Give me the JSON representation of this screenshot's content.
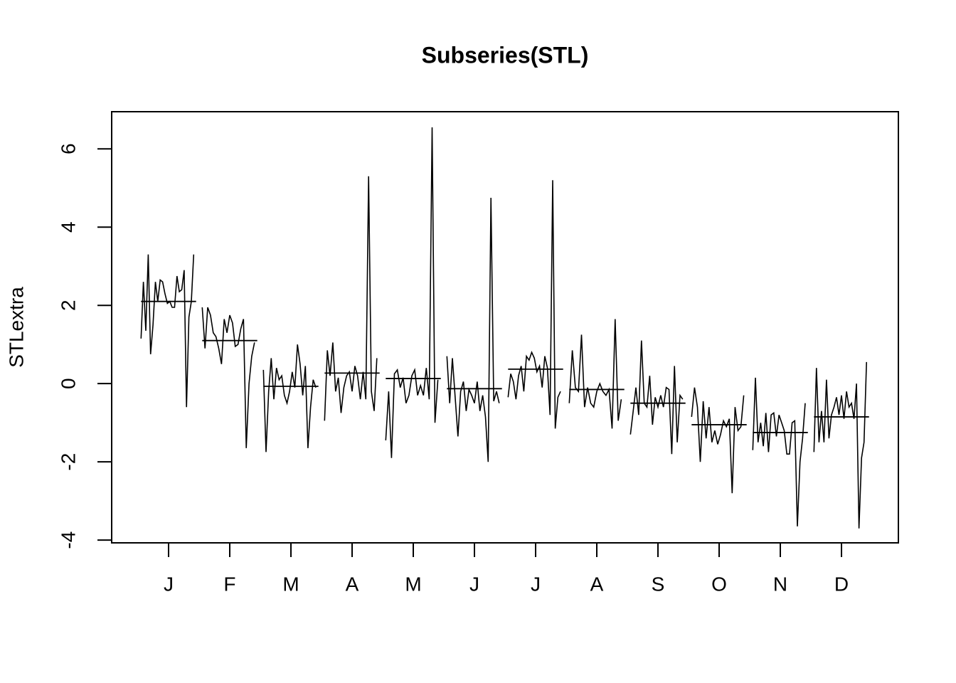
{
  "chart_data": {
    "type": "subseries",
    "title": "Subseries(STL)",
    "y_label": "STLextra",
    "xlim": [
      0.07,
      12.93
    ],
    "ylim": [
      -4.07,
      6.95
    ],
    "xticks": [
      {
        "value": 1,
        "label": "J"
      },
      {
        "value": 2,
        "label": "F"
      },
      {
        "value": 3,
        "label": "M"
      },
      {
        "value": 4,
        "label": "A"
      },
      {
        "value": 5,
        "label": "M"
      },
      {
        "value": 6,
        "label": "J"
      },
      {
        "value": 7,
        "label": "J"
      },
      {
        "value": 8,
        "label": "A"
      },
      {
        "value": 9,
        "label": "S"
      },
      {
        "value": 10,
        "label": "O"
      },
      {
        "value": 11,
        "label": "N"
      },
      {
        "value": 12,
        "label": "D"
      }
    ],
    "yticks": [
      -4,
      -2,
      0,
      2,
      4,
      6
    ],
    "color": "#000000",
    "subseries": [
      {
        "mean": 2.1,
        "values": [
          1.15,
          2.6,
          1.35,
          3.3,
          0.75,
          1.5,
          2.6,
          2.1,
          2.65,
          2.6,
          2.3,
          2.05,
          2.1,
          1.95,
          1.95,
          2.75,
          2.35,
          2.4,
          2.9,
          -0.6,
          1.7,
          2.1,
          3.3
        ]
      },
      {
        "mean": 1.1,
        "values": [
          1.95,
          0.9,
          1.95,
          1.75,
          1.3,
          1.2,
          0.9,
          0.5,
          1.65,
          1.3,
          1.75,
          1.55,
          0.95,
          1.0,
          1.4,
          1.65,
          -1.65,
          0.0,
          0.7,
          1.05
        ]
      },
      {
        "mean": -0.07,
        "values": [
          0.35,
          -1.75,
          -0.2,
          0.65,
          -0.4,
          0.4,
          0.1,
          0.2,
          -0.3,
          -0.5,
          -0.2,
          0.3,
          -0.1,
          1.0,
          0.5,
          -0.3,
          0.45,
          -1.65,
          -0.6,
          0.1,
          -0.1
        ]
      },
      {
        "mean": 0.27,
        "values": [
          -0.95,
          0.85,
          0.2,
          1.05,
          -0.2,
          0.15,
          -0.75,
          -0.1,
          0.2,
          0.3,
          -0.2,
          0.45,
          0.2,
          -0.4,
          0.3,
          -0.4,
          5.3,
          -0.2,
          -0.7,
          0.65
        ]
      },
      {
        "mean": 0.13,
        "values": [
          -1.45,
          -0.2,
          -1.9,
          0.25,
          0.35,
          -0.1,
          0.15,
          -0.5,
          -0.3,
          0.2,
          0.35,
          -0.3,
          -0.05,
          -0.3,
          0.4,
          -0.4,
          6.55,
          -1.0,
          0.1
        ]
      },
      {
        "mean": -0.13,
        "values": [
          0.7,
          -0.5,
          0.65,
          -0.35,
          -1.35,
          -0.2,
          0.05,
          -0.7,
          -0.15,
          -0.3,
          -0.5,
          0.05,
          -0.7,
          -0.3,
          -0.85,
          -2.0,
          4.75,
          -0.45,
          -0.2,
          -0.5
        ]
      },
      {
        "mean": 0.37,
        "values": [
          -0.35,
          0.25,
          0.05,
          -0.4,
          0.2,
          0.45,
          -0.2,
          0.7,
          0.6,
          0.8,
          0.65,
          0.3,
          0.45,
          -0.1,
          0.7,
          0.4,
          -0.8,
          5.2,
          -1.15,
          -0.35,
          -0.2
        ]
      },
      {
        "mean": -0.15,
        "values": [
          -0.5,
          0.85,
          -0.1,
          -0.2,
          1.25,
          -0.6,
          -0.1,
          -0.5,
          -0.6,
          -0.2,
          0.0,
          -0.2,
          -0.3,
          -0.15,
          -1.15,
          1.65,
          -0.95,
          -0.4
        ]
      },
      {
        "mean": -0.5,
        "values": [
          -1.3,
          -0.7,
          -0.1,
          -0.8,
          1.1,
          -0.5,
          -0.6,
          0.2,
          -1.05,
          -0.35,
          -0.6,
          -0.3,
          -0.6,
          -0.1,
          -0.15,
          -1.8,
          0.45,
          -1.5,
          -0.3,
          -0.4
        ]
      },
      {
        "mean": -1.05,
        "values": [
          -0.85,
          -0.1,
          -0.6,
          -2.0,
          -0.45,
          -1.4,
          -0.6,
          -1.5,
          -1.2,
          -1.55,
          -1.3,
          -0.95,
          -1.1,
          -0.9,
          -2.8,
          -0.6,
          -1.2,
          -1.1,
          -0.3
        ]
      },
      {
        "mean": -1.25,
        "values": [
          -1.7,
          0.15,
          -1.5,
          -1.0,
          -1.6,
          -0.75,
          -1.75,
          -0.8,
          -0.75,
          -1.35,
          -0.8,
          -1.0,
          -1.2,
          -1.8,
          -1.8,
          -1.0,
          -0.95,
          -3.65,
          -2.0,
          -1.4,
          -0.5
        ]
      },
      {
        "mean": -0.85,
        "values": [
          -1.75,
          0.4,
          -1.5,
          -0.7,
          -1.5,
          0.1,
          -1.4,
          -0.8,
          -0.6,
          -0.35,
          -0.8,
          -0.3,
          -0.9,
          -0.2,
          -0.6,
          -0.5,
          -0.9,
          0.0,
          -3.7,
          -1.9,
          -1.5,
          0.55
        ]
      }
    ]
  }
}
